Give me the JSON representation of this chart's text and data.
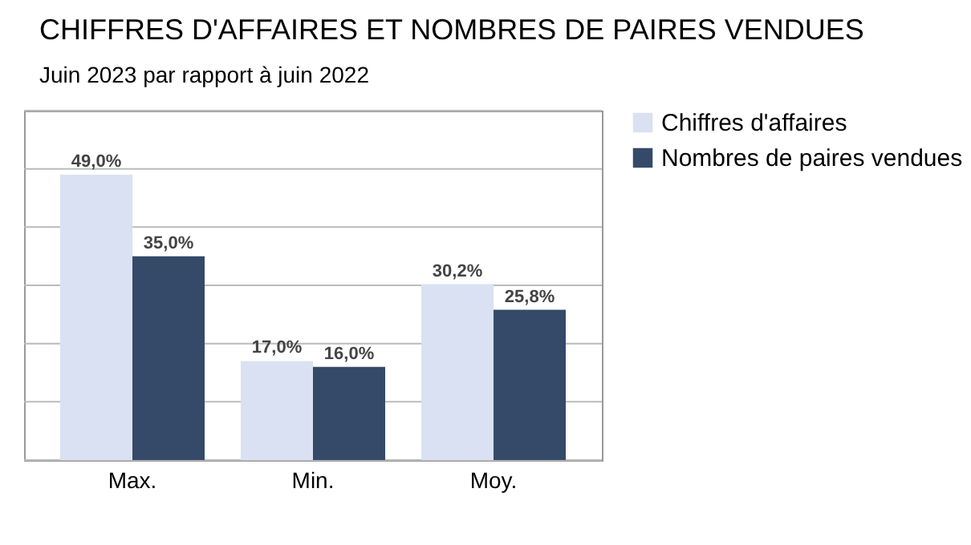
{
  "chart_data": {
    "type": "bar",
    "title": "CHIFFRES D'AFFAIRES ET NOMBRES DE PAIRES VENDUES",
    "subtitle": "Juin 2023 par rapport à juin 2022",
    "categories": [
      "Max.",
      "Min.",
      "Moy."
    ],
    "series": [
      {
        "name": "Chiffres d'affaires",
        "color": "#d9e1f2",
        "values": [
          49.0,
          17.0,
          30.2
        ],
        "value_labels": [
          "49,0%",
          "17,0%",
          "30,2%"
        ]
      },
      {
        "name": "Nombres de paires vendues",
        "color": "#344a68",
        "values": [
          35.0,
          16.0,
          25.8
        ],
        "value_labels": [
          "35,0%",
          "16,0%",
          "25,8%"
        ]
      }
    ],
    "ylim": [
      0,
      60
    ],
    "yticks": [
      {
        "value": 0,
        "label": null
      },
      {
        "value": 10,
        "label": null
      },
      {
        "value": 20,
        "label": null
      },
      {
        "value": 30,
        "label": null
      },
      {
        "value": 40,
        "label": null
      },
      {
        "value": 50,
        "label": null
      },
      {
        "value": 60,
        "label": null
      }
    ],
    "tick_labels": "x",
    "grid": "y",
    "legend": "right"
  }
}
